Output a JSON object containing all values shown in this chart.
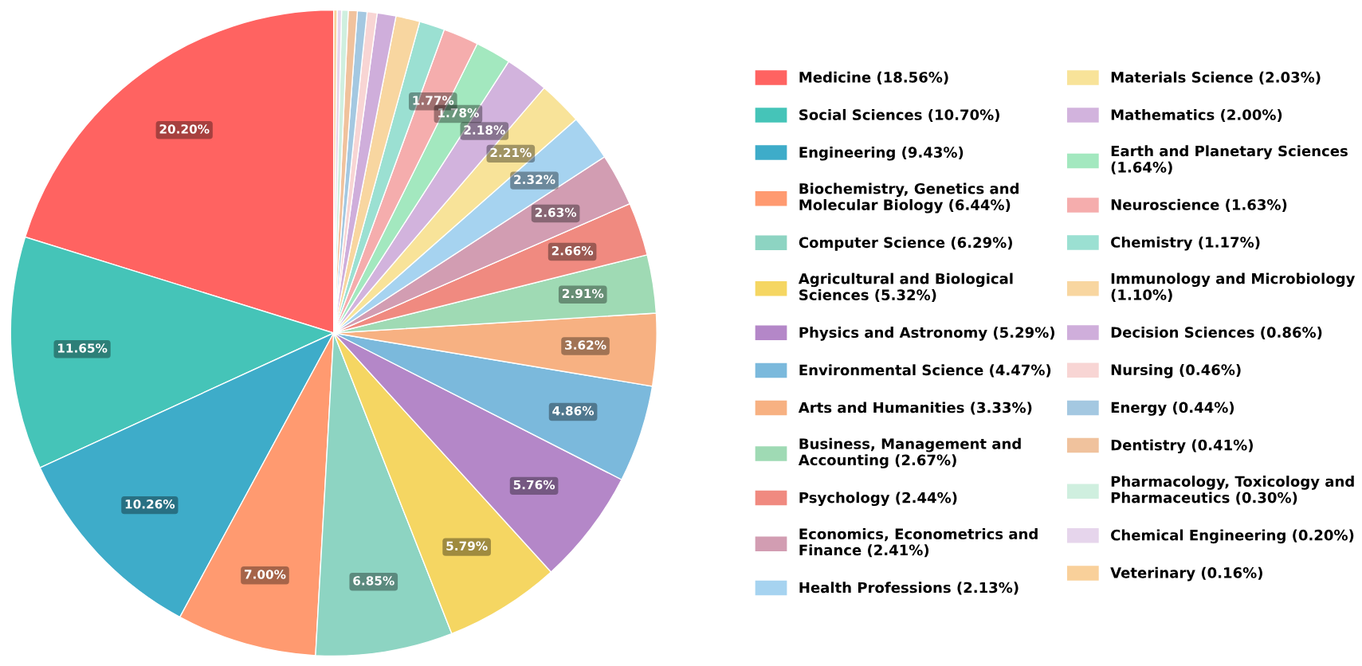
{
  "chart_data": {
    "type": "pie",
    "categories": [
      "Medicine (18.56%)",
      "Social Sciences (10.70%)",
      "Engineering (9.43%)",
      "Biochemistry, Genetics and Molecular Biology (6.44%)",
      "Computer Science (6.29%)",
      "Agricultural and Biological Sciences (5.32%)",
      "Physics and Astronomy (5.29%)",
      "Environmental Science (4.47%)",
      "Arts and Humanities (3.33%)",
      "Business, Management and Accounting (2.67%)",
      "Psychology (2.44%)",
      "Economics, Econometrics and Finance (2.41%)",
      "Health Professions (2.13%)",
      "Materials Science (2.03%)",
      "Mathematics (2.00%)",
      "Earth and Planetary Sciences (1.64%)",
      "Neuroscience (1.63%)",
      "Chemistry (1.17%)",
      "Immunology and Microbiology (1.10%)",
      "Decision Sciences (0.86%)",
      "Nursing (0.46%)",
      "Energy (0.44%)",
      "Dentistry (0.41%)",
      "Pharmacology, Toxicology and Pharmaceutics (0.30%)",
      "Chemical Engineering (0.20%)",
      "Veterinary (0.16%)"
    ],
    "values": [
      20.2,
      11.65,
      10.26,
      7.0,
      6.85,
      5.79,
      5.76,
      4.86,
      3.62,
      2.91,
      2.66,
      2.63,
      2.32,
      2.21,
      2.18,
      1.78,
      1.77,
      1.27,
      1.2,
      0.94,
      0.5,
      0.48,
      0.45,
      0.33,
      0.22,
      0.17
    ],
    "value_labels": [
      "20.20%",
      "11.65%",
      "10.26%",
      "7.00%",
      "6.85%",
      "5.79%",
      "5.76%",
      "4.86%",
      "3.62%",
      "2.91%",
      "2.66%",
      "2.63%",
      "2.32%",
      "2.21%",
      "2.18%",
      "1.78%",
      "1.77%",
      null,
      null,
      null,
      null,
      null,
      null,
      null,
      null,
      null
    ],
    "colors": [
      "#ff6361",
      "#45c4b8",
      "#3eacc9",
      "#ff9a70",
      "#8dd4c2",
      "#f5d662",
      "#b487c8",
      "#7bb9dc",
      "#f7b182",
      "#9fdab4",
      "#f08a80",
      "#d29db2",
      "#a6d3f0",
      "#f8e399",
      "#d2b3dd",
      "#a3e8bf",
      "#f5adad",
      "#9be0d2",
      "#f8d6a0",
      "#cfaedb",
      "#f8d5d4",
      "#a4c8e1",
      "#f0c29d",
      "#cfefdf",
      "#e6d5ec",
      "#f9d09a"
    ],
    "legend": "right"
  }
}
